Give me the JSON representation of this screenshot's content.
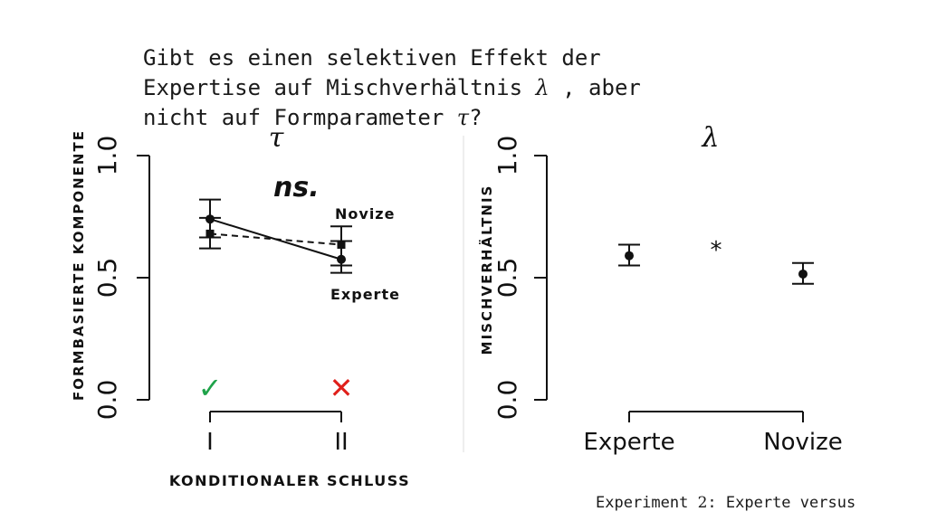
{
  "question": {
    "line1": "Gibt es einen selektiven Effekt der",
    "line2_pre": "Expertise auf Mischverhältnis ",
    "line2_sym": "λ",
    "line2_post": " , aber",
    "line3_pre": "nicht auf Formparameter ",
    "line3_sym": "τ",
    "line3_post": "?"
  },
  "footer": {
    "pre": "Experiment ",
    "num": "2",
    "post": ": Experte versus"
  },
  "chart_data": [
    {
      "type": "line",
      "title": "τ",
      "ylabel": "FORMBASIERTE KOMPONENTE",
      "xlabel": "KONDITIONALER SCHLUSS",
      "categories": [
        "I",
        "II"
      ],
      "ylim": [
        0,
        1
      ],
      "yticks": [
        0.0,
        0.5,
        1.0
      ],
      "ytick_labels": [
        "0.0",
        "0.5",
        "1.0"
      ],
      "grid": false,
      "annotation": "ns.",
      "condition_marks": [
        {
          "category": "I",
          "mark": "✓",
          "color": "#1fa34a"
        },
        {
          "category": "II",
          "mark": "✕",
          "color": "#e0201b"
        }
      ],
      "series": [
        {
          "name": "Experte",
          "marker": "circle",
          "linestyle": "solid",
          "values": [
            0.74,
            0.575
          ],
          "err_low": [
            0.665,
            0.55
          ],
          "err_high": [
            0.82,
            0.65
          ]
        },
        {
          "name": "Novize",
          "marker": "square",
          "linestyle": "dashed",
          "values": [
            0.68,
            0.635
          ],
          "err_low": [
            0.62,
            0.52
          ],
          "err_high": [
            0.745,
            0.71
          ]
        }
      ]
    },
    {
      "type": "scatter",
      "title": "λ",
      "ylabel": "MISCHVERHÄLTNIS",
      "categories": [
        "Experte",
        "Novize"
      ],
      "ylim": [
        0,
        1
      ],
      "yticks": [
        0.0,
        0.5,
        1.0
      ],
      "ytick_labels": [
        "0.0",
        "0.5",
        "1.0"
      ],
      "grid": false,
      "annotation": "*",
      "series": [
        {
          "marker": "circle",
          "values": [
            0.59,
            0.515
          ],
          "err_low": [
            0.55,
            0.475
          ],
          "err_high": [
            0.635,
            0.56
          ]
        }
      ]
    }
  ]
}
